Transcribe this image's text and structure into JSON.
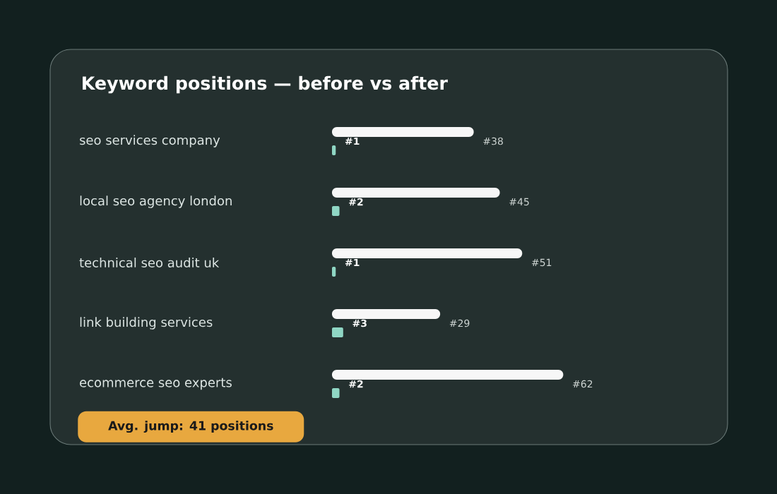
{
  "chart_data": {
    "type": "bar",
    "orientation": "horizontal",
    "title": "Keyword positions — before vs after",
    "categories": [
      "seo services company",
      "local seo agency london",
      "technical seo audit uk",
      "link building services",
      "ecommerce seo experts"
    ],
    "series": [
      {
        "color": "#f7f7f7",
        "values": [
          38,
          45,
          51,
          29,
          62
        ],
        "value_labels": [
          "#38",
          "#45",
          "#51",
          "#29",
          "#62"
        ]
      },
      {
        "color": "#8fd6c4",
        "values": [
          1,
          2,
          1,
          3,
          2
        ],
        "value_labels": [
          "#1",
          "#2",
          "#1",
          "#3",
          "#2"
        ]
      }
    ],
    "tick_labels": "y",
    "annotations": [
      "Avg. jump: 41 positions"
    ]
  }
}
